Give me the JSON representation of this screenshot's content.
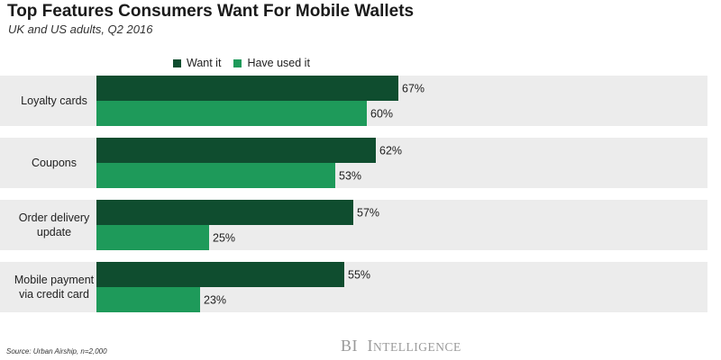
{
  "chart_data": {
    "type": "bar",
    "orientation": "horizontal",
    "title": "Top Features Consumers Want For Mobile Wallets",
    "subtitle": "UK and US adults, Q2 2016",
    "categories": [
      [
        "Loyalty cards"
      ],
      [
        "Coupons"
      ],
      [
        "Order delivery",
        "update"
      ],
      [
        "Mobile payment",
        "via credit card"
      ]
    ],
    "series": [
      {
        "name": "Want it",
        "values": [
          67,
          62,
          57,
          55
        ],
        "color": "#0f4d2f",
        "labels": [
          "67%",
          "62%",
          "57%",
          "55%"
        ]
      },
      {
        "name": "Have used it",
        "values": [
          60,
          53,
          25,
          23
        ],
        "color": "#1e9a5a",
        "labels": [
          "60%",
          "53%",
          "25%",
          "23%"
        ]
      }
    ],
    "xlim": [
      0,
      100
    ],
    "value_format": "percent",
    "grid": false,
    "legend_position": "top"
  },
  "source": "Source: Urban Airship, n=2,000",
  "brand": {
    "initials": "BI",
    "first": "I",
    "rest": "NTELLIGENCE"
  },
  "colors": {
    "group_background": "#ececec",
    "bar_want": "#0f4d2f",
    "bar_used": "#1e9a5a"
  }
}
